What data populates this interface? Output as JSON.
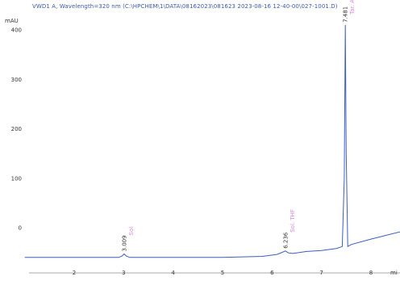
{
  "header_text": "VWD1 A, Wavelength=320 nm (C:\\HPCHEM\\1\\DATA\\08162023\\081623 2023-08-16 12-40-00\\027-1001.D)",
  "chart_data": {
    "type": "line",
    "ylabel": "mAU",
    "xlabel_partial": "mi",
    "xlim": [
      1.0,
      8.6
    ],
    "ylim": [
      -60,
      420
    ],
    "x_ticks": [
      2,
      3,
      4,
      5,
      6,
      7,
      8
    ],
    "y_ticks": [
      0,
      100,
      200,
      300,
      400
    ],
    "series": [
      {
        "x": [
          1.0,
          2.0,
          2.9,
          2.97,
          3.009,
          3.05,
          3.12,
          3.5,
          4.0,
          5.0,
          5.8,
          6.1,
          6.2,
          6.27,
          6.33,
          6.42,
          6.7,
          7.0,
          7.3,
          7.42,
          7.46,
          7.481,
          7.5,
          7.53,
          7.6,
          8.0,
          8.6
        ],
        "y": [
          -60,
          -60,
          -60,
          -57,
          -53,
          -57,
          -60,
          -60,
          -60,
          -60,
          -58,
          -54,
          -50,
          -47,
          -51,
          -52,
          -48,
          -46,
          -42,
          -38,
          100,
          410,
          150,
          -38,
          -34,
          -23,
          -8
        ]
      }
    ],
    "peaks": [
      {
        "rt": "3.009",
        "x": 3.009,
        "y": -53,
        "compound": "Sol"
      },
      {
        "rt": "6.236",
        "x": 6.27,
        "y": -47,
        "compound": "Sol. THF"
      },
      {
        "rt": "7.481",
        "x": 7.481,
        "y": 410,
        "compound": "Tar. A"
      }
    ],
    "colors": {
      "trace": "#3b5fc0",
      "axis": "#333333",
      "annotation": "#d98ad6"
    }
  }
}
